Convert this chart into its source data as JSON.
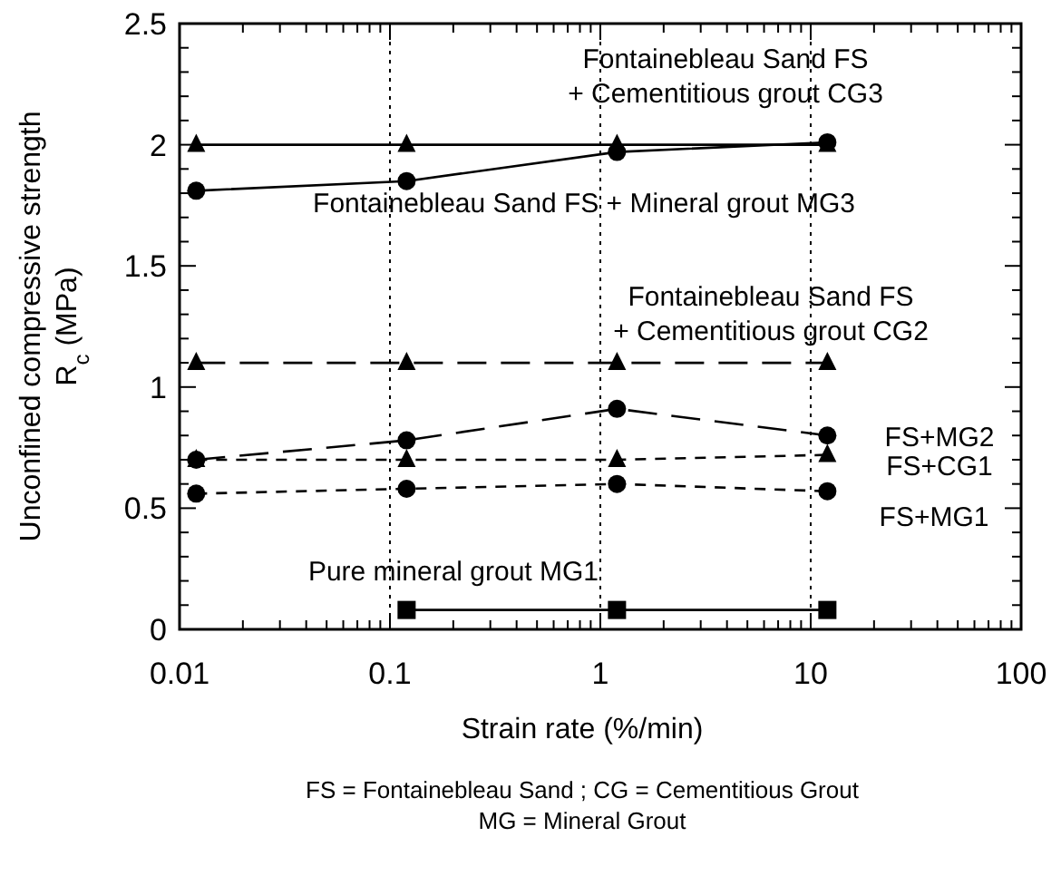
{
  "chart_data": {
    "type": "line",
    "xlabel": "Strain rate  (%/min)",
    "ylabel": "Unconfined compressive strength\nR$_{c}$ (MPa)",
    "log": "x",
    "grid": "x",
    "xlim": [
      0.01,
      100
    ],
    "ylim": [
      0,
      2.5
    ],
    "xticks": [
      0.01,
      {
        "value": 0.02,
        "label": null
      },
      {
        "value": 0.03,
        "label": null
      },
      {
        "value": 0.04,
        "label": null
      },
      {
        "value": 0.05,
        "label": null
      },
      {
        "value": 0.06,
        "label": null
      },
      {
        "value": 0.07,
        "label": null
      },
      {
        "value": 0.08,
        "label": null
      },
      {
        "value": 0.09,
        "label": null
      },
      0.1,
      {
        "value": 0.2,
        "label": null
      },
      {
        "value": 0.3,
        "label": null
      },
      {
        "value": 0.4,
        "label": null
      },
      {
        "value": 0.5,
        "label": null
      },
      {
        "value": 0.6,
        "label": null
      },
      {
        "value": 0.7,
        "label": null
      },
      {
        "value": 0.8,
        "label": null
      },
      {
        "value": 0.9,
        "label": null
      },
      1,
      {
        "value": 2,
        "label": null
      },
      {
        "value": 3,
        "label": null
      },
      {
        "value": 4,
        "label": null
      },
      {
        "value": 5,
        "label": null
      },
      {
        "value": 6,
        "label": null
      },
      {
        "value": 7,
        "label": null
      },
      {
        "value": 8,
        "label": null
      },
      {
        "value": 9,
        "label": null
      },
      10,
      {
        "value": 20,
        "label": null
      },
      {
        "value": 30,
        "label": null
      },
      {
        "value": 40,
        "label": null
      },
      {
        "value": 50,
        "label": null
      },
      {
        "value": 60,
        "label": null
      },
      {
        "value": 70,
        "label": null
      },
      {
        "value": 80,
        "label": null
      },
      {
        "value": 90,
        "label": null
      },
      100
    ],
    "yticks": [
      0,
      {
        "value": 0.1,
        "label": null
      },
      {
        "value": 0.2,
        "label": null
      },
      {
        "value": 0.3,
        "label": null
      },
      {
        "value": 0.4,
        "label": null
      },
      0.5,
      {
        "value": 0.6,
        "label": null
      },
      {
        "value": 0.7,
        "label": null
      },
      {
        "value": 0.8,
        "label": null
      },
      {
        "value": 0.9,
        "label": null
      },
      1,
      {
        "value": 1.1,
        "label": null
      },
      {
        "value": 1.2,
        "label": null
      },
      {
        "value": 1.3,
        "label": null
      },
      {
        "value": 1.4,
        "label": null
      },
      1.5,
      {
        "value": 1.6,
        "label": null
      },
      {
        "value": 1.7,
        "label": null
      },
      {
        "value": 1.8,
        "label": null
      },
      {
        "value": 1.9,
        "label": null
      },
      2,
      {
        "value": 2.1,
        "label": null
      },
      {
        "value": 2.2,
        "label": null
      },
      {
        "value": 2.3,
        "label": null
      },
      {
        "value": 2.4,
        "label": null
      },
      2.5
    ],
    "x": [
      0.012,
      0.12,
      1.2,
      12
    ],
    "series": [
      {
        "color": "#000000",
        "marker": "triangle",
        "line_style": "solid",
        "values": [
          2.0,
          2.0,
          2.0,
          2.0
        ]
      },
      {
        "color": "#000000",
        "marker": "circle",
        "line_style": "solid",
        "values": [
          1.81,
          1.85,
          1.97,
          2.01
        ]
      },
      {
        "color": "#000000",
        "marker": "triangle",
        "line_style": "dashed",
        "values": [
          1.1,
          1.1,
          1.1,
          1.1
        ]
      },
      {
        "color": "#000000",
        "marker": "circle",
        "line_style": "dashed",
        "values": [
          0.7,
          0.78,
          0.91,
          0.8
        ]
      },
      {
        "color": "#000000",
        "marker": "triangle",
        "line_style": "dotted",
        "values": [
          0.7,
          0.7,
          0.7,
          0.72
        ]
      },
      {
        "color": "#000000",
        "marker": "circle",
        "line_style": "dotted",
        "values": [
          0.56,
          0.58,
          0.6,
          0.57
        ]
      },
      {
        "color": "#000000",
        "marker": "square",
        "line_style": "solid",
        "x": [
          0.12,
          1.2,
          12
        ],
        "values": [
          0.08,
          0.08,
          0.08
        ]
      }
    ],
    "annotations": [
      "Fontainebleau Sand FS\n+ Cementitious grout CG3",
      "Fontainebleau Sand FS + Mineral grout MG3",
      "Fontainebleau Sand FS\n+ Cementitious grout CG2",
      "FS+MG2",
      "FS+CG1",
      "FS+MG1",
      "Pure mineral grout MG1",
      "FS = Fontainebleau Sand ; CG = Cementitious Grout\nMG = Mineral Grout"
    ]
  }
}
